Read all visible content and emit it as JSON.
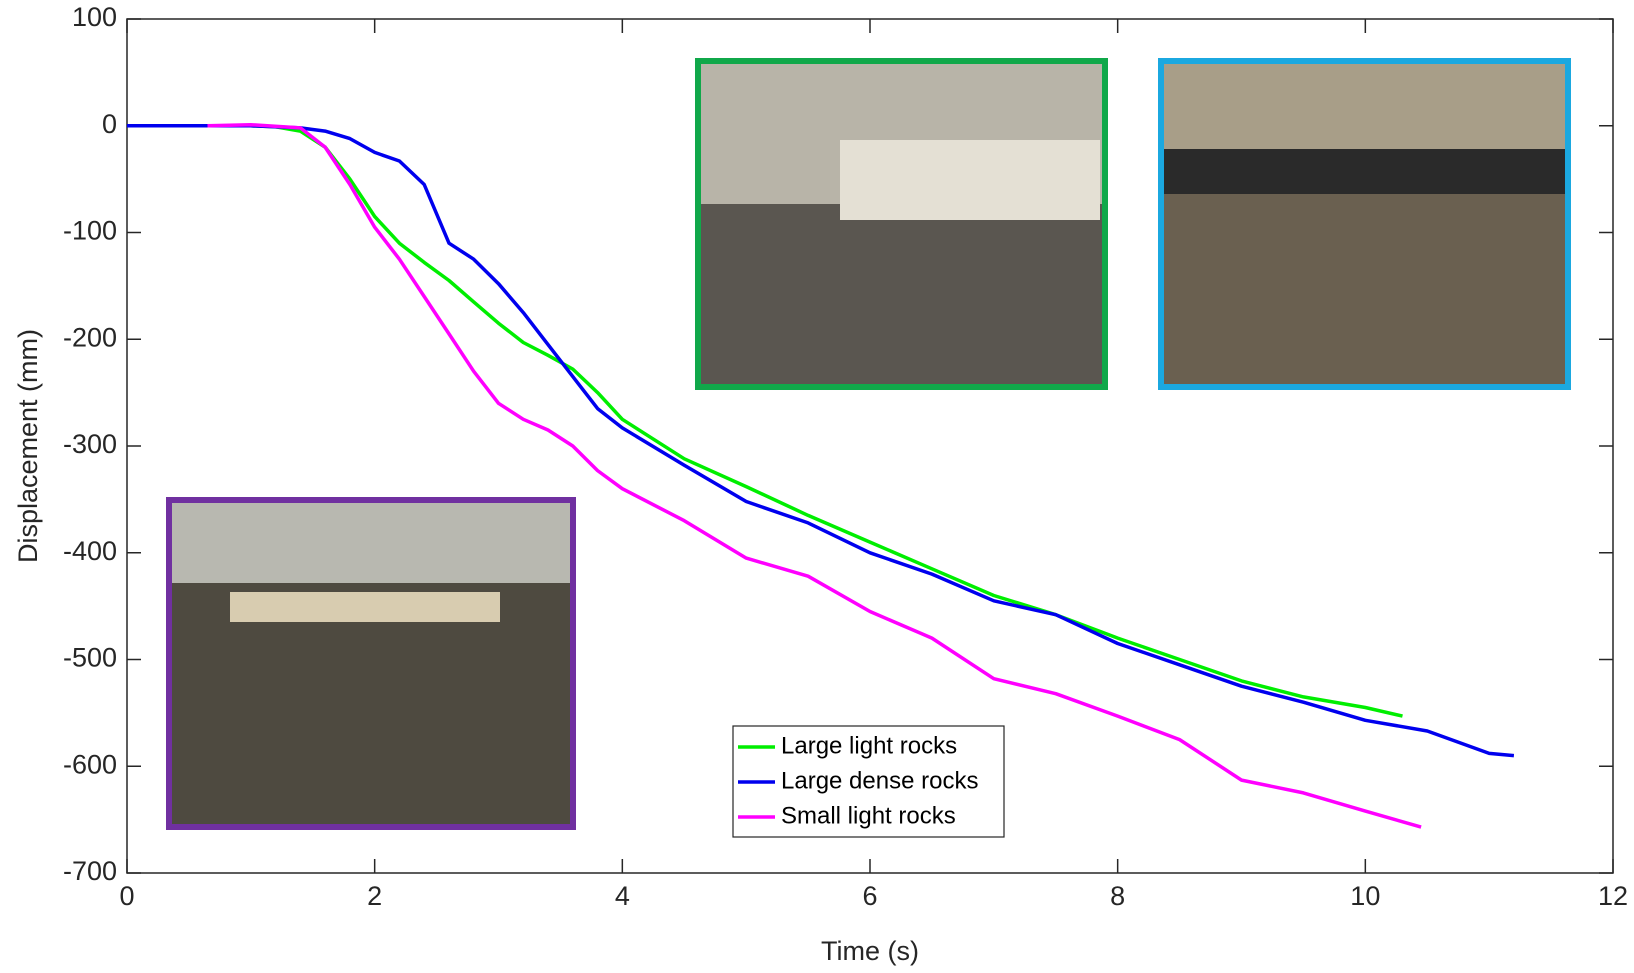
{
  "chart_data": {
    "type": "line",
    "xlabel": "Time (s)",
    "ylabel": "Displacement (mm)",
    "xlim": [
      0,
      12
    ],
    "xticks": [
      0,
      2,
      4,
      6,
      8,
      10,
      12
    ],
    "ylim": [
      -700,
      100
    ],
    "yticks": [
      -700,
      -600,
      -500,
      -400,
      -300,
      -200,
      -100,
      0,
      100
    ],
    "legend": "bottom-center",
    "series": [
      {
        "name": "Large light rocks",
        "color": "#00ee00",
        "x": [
          1.0,
          1.2,
          1.4,
          1.6,
          1.8,
          2.0,
          2.2,
          2.4,
          2.6,
          2.8,
          3.0,
          3.2,
          3.4,
          3.6,
          3.8,
          4.0,
          4.5,
          5.0,
          5.5,
          6.0,
          6.5,
          7.0,
          7.5,
          8.0,
          8.5,
          9.0,
          9.5,
          10.0,
          10.3
        ],
        "values": [
          0,
          -1,
          -5,
          -20,
          -50,
          -85,
          -110,
          -128,
          -145,
          -165,
          -185,
          -203,
          -215,
          -228,
          -250,
          -275,
          -312,
          -338,
          -365,
          -390,
          -415,
          -440,
          -458,
          -480,
          -500,
          -520,
          -535,
          -545,
          -553
        ]
      },
      {
        "name": "Large dense rocks",
        "color": "#0000ee",
        "x": [
          0,
          0.5,
          1.0,
          1.4,
          1.6,
          1.8,
          2.0,
          2.2,
          2.4,
          2.6,
          2.8,
          3.0,
          3.2,
          3.4,
          3.6,
          3.8,
          4.0,
          4.5,
          5.0,
          5.5,
          6.0,
          6.5,
          7.0,
          7.5,
          8.0,
          8.5,
          9.0,
          9.5,
          10.0,
          10.5,
          11.0,
          11.2
        ],
        "values": [
          0,
          0,
          0,
          -2,
          -5,
          -12,
          -25,
          -33,
          -55,
          -110,
          -125,
          -148,
          -175,
          -205,
          -235,
          -265,
          -283,
          -318,
          -352,
          -372,
          -400,
          -420,
          -445,
          -458,
          -485,
          -505,
          -525,
          -540,
          -557,
          -567,
          -588,
          -590
        ]
      },
      {
        "name": "Small light rocks",
        "color": "#ff00ff",
        "x": [
          0.65,
          1.0,
          1.4,
          1.6,
          1.8,
          2.0,
          2.2,
          2.4,
          2.6,
          2.8,
          3.0,
          3.2,
          3.4,
          3.6,
          3.8,
          4.0,
          4.5,
          5.0,
          5.5,
          6.0,
          6.5,
          7.0,
          7.5,
          8.0,
          8.5,
          9.0,
          9.5,
          10.0,
          10.45
        ],
        "values": [
          0,
          1,
          -2,
          -20,
          -55,
          -95,
          -125,
          -160,
          -195,
          -230,
          -260,
          -275,
          -285,
          -300,
          -323,
          -340,
          -370,
          -405,
          -422,
          -455,
          -480,
          -518,
          -532,
          -553,
          -575,
          -613,
          -625,
          -642,
          -657
        ]
      }
    ]
  }
}
